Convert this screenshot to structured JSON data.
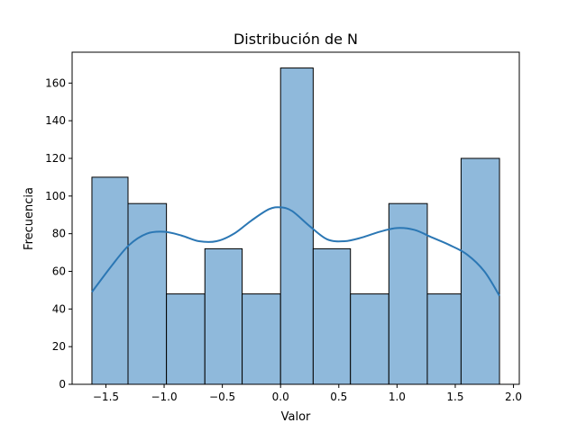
{
  "chart_data": {
    "type": "bar",
    "subtype": "histogram-with-kde",
    "title": "Distribución de N",
    "xlabel": "Valor",
    "ylabel": "Frecuencia",
    "xlim": [
      -1.79,
      2.05
    ],
    "ylim": [
      0,
      176.4
    ],
    "xticks": [
      -1.5,
      -1.0,
      -0.5,
      0.0,
      0.5,
      1.0,
      1.5,
      2.0
    ],
    "xtick_labels": [
      "−1.5",
      "−1.0",
      "−0.5",
      "0.0",
      "0.5",
      "1.0",
      "1.5",
      "2.0"
    ],
    "yticks": [
      0,
      20,
      40,
      60,
      80,
      100,
      120,
      140,
      160
    ],
    "ytick_labels": [
      "0",
      "20",
      "40",
      "60",
      "80",
      "100",
      "120",
      "140",
      "160"
    ],
    "grid": false,
    "bins": [
      {
        "x0": -1.62,
        "x1": -1.31,
        "count": 110
      },
      {
        "x0": -1.31,
        "x1": -0.98,
        "count": 96
      },
      {
        "x0": -0.98,
        "x1": -0.65,
        "count": 48
      },
      {
        "x0": -0.65,
        "x1": -0.33,
        "count": 72
      },
      {
        "x0": -0.33,
        "x1": 0.0,
        "count": 48
      },
      {
        "x0": 0.0,
        "x1": 0.28,
        "count": 168
      },
      {
        "x0": 0.28,
        "x1": 0.6,
        "count": 72
      },
      {
        "x0": 0.6,
        "x1": 0.93,
        "count": 48
      },
      {
        "x0": 0.93,
        "x1": 1.26,
        "count": 96
      },
      {
        "x0": 1.26,
        "x1": 1.55,
        "count": 48
      },
      {
        "x0": 1.55,
        "x1": 1.88,
        "count": 120
      }
    ],
    "kde": {
      "x": [
        -1.62,
        -1.45,
        -1.3,
        -1.15,
        -1.0,
        -0.85,
        -0.7,
        -0.55,
        -0.4,
        -0.25,
        -0.1,
        0.0,
        0.1,
        0.25,
        0.4,
        0.55,
        0.7,
        0.85,
        1.0,
        1.15,
        1.3,
        1.45,
        1.6,
        1.75,
        1.88
      ],
      "y": [
        49,
        63,
        74,
        80,
        81,
        79,
        76,
        76,
        80,
        87,
        93,
        94,
        92,
        84,
        77,
        76,
        78,
        81,
        83,
        82,
        78,
        74,
        69,
        60,
        47
      ]
    },
    "colors": {
      "bar_fill": "#8fb9db",
      "bar_edge": "#000000",
      "kde_line": "#2b77b4"
    }
  }
}
